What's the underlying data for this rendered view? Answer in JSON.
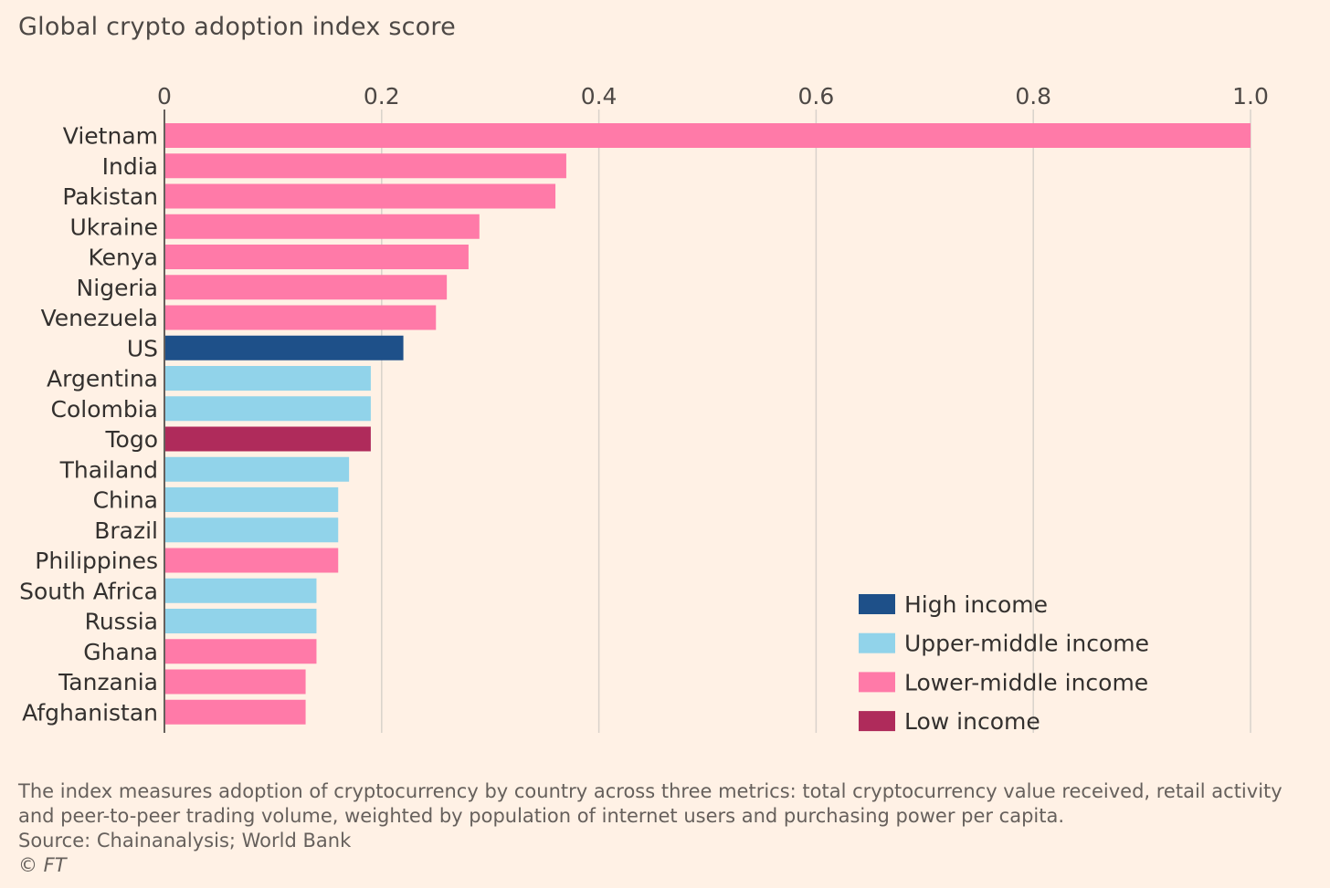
{
  "title": "Global crypto adoption index score",
  "footer": {
    "note_line1": "The index measures adoption of cryptocurrency by country across three metrics: total cryptocurrency value received, retail activity",
    "note_line2": "and peer-to-peer trading volume, weighted by population of internet users and purchasing power per capita.",
    "source": "Source: Chainanalysis; World Bank",
    "copyright": "© FT"
  },
  "colors": {
    "background": "#fff1e5",
    "high_income": "#1e5089",
    "upper_middle_income": "#91d3ea",
    "lower_middle_income": "#ff7aa8",
    "low_income": "#af2b5b",
    "gridline": "#d9d2cb",
    "axis_text": "#4d4845"
  },
  "chart_data": {
    "type": "bar",
    "orientation": "horizontal",
    "title": "Global crypto adoption index score",
    "xlim": [
      0,
      1.0
    ],
    "x_ticks": [
      0,
      0.2,
      0.4,
      0.6,
      0.8,
      1.0
    ],
    "x_tick_labels": [
      "0",
      "0.2",
      "0.4",
      "0.6",
      "0.8",
      "1.0"
    ],
    "x_axis_position": "top",
    "grid": true,
    "legend_position": "bottom-right",
    "legend": [
      {
        "key": "high",
        "label": "High income"
      },
      {
        "key": "upper_middle",
        "label": "Upper-middle income"
      },
      {
        "key": "lower_middle",
        "label": "Lower-middle income"
      },
      {
        "key": "low",
        "label": "Low income"
      }
    ],
    "categories": [
      "Vietnam",
      "India",
      "Pakistan",
      "Ukraine",
      "Kenya",
      "Nigeria",
      "Venezuela",
      "US",
      "Argentina",
      "Colombia",
      "Togo",
      "Thailand",
      "China",
      "Brazil",
      "Philippines",
      "South Africa",
      "Russia",
      "Ghana",
      "Tanzania",
      "Afghanistan"
    ],
    "values": [
      1.0,
      0.37,
      0.36,
      0.29,
      0.28,
      0.26,
      0.25,
      0.22,
      0.19,
      0.19,
      0.19,
      0.17,
      0.16,
      0.16,
      0.16,
      0.14,
      0.14,
      0.14,
      0.13,
      0.13
    ],
    "income_group": [
      "lower_middle",
      "lower_middle",
      "lower_middle",
      "lower_middle",
      "lower_middle",
      "lower_middle",
      "lower_middle",
      "high",
      "upper_middle",
      "upper_middle",
      "low",
      "upper_middle",
      "upper_middle",
      "upper_middle",
      "lower_middle",
      "upper_middle",
      "upper_middle",
      "lower_middle",
      "lower_middle",
      "lower_middle"
    ]
  }
}
